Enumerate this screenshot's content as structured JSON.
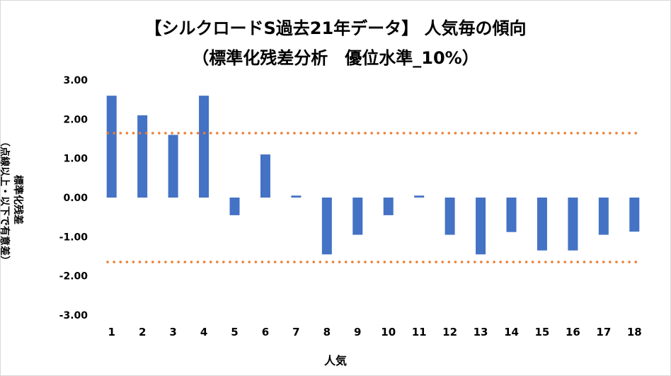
{
  "chart_data": {
    "type": "bar",
    "title": "【シルクロードS過去21年データ】 人気毎の傾向",
    "subtitle": "（標準化残差分析　優位水準_10%）",
    "xlabel": "人気",
    "ylabel": "標準化残差",
    "ylabel_note": "（点線以上・以下で有意差）",
    "categories": [
      "1",
      "2",
      "3",
      "4",
      "5",
      "6",
      "7",
      "8",
      "9",
      "10",
      "11",
      "12",
      "13",
      "14",
      "15",
      "16",
      "17",
      "18"
    ],
    "values": [
      2.6,
      2.1,
      1.6,
      2.6,
      -0.45,
      1.1,
      0.05,
      -1.45,
      -0.95,
      -0.45,
      0.05,
      -0.95,
      -1.45,
      -0.88,
      -1.35,
      -1.35,
      -0.95,
      -0.87
    ],
    "y_ticks": [
      "3.00",
      "2.00",
      "1.00",
      "0.00",
      "-1.00",
      "-2.00",
      "-3.00"
    ],
    "ylim": [
      -3,
      3
    ],
    "reference_lines": [
      1.645,
      -1.645
    ],
    "bar_color": "#4472C4",
    "reference_color": "#ED7D31",
    "grid": false,
    "legend": "none"
  }
}
